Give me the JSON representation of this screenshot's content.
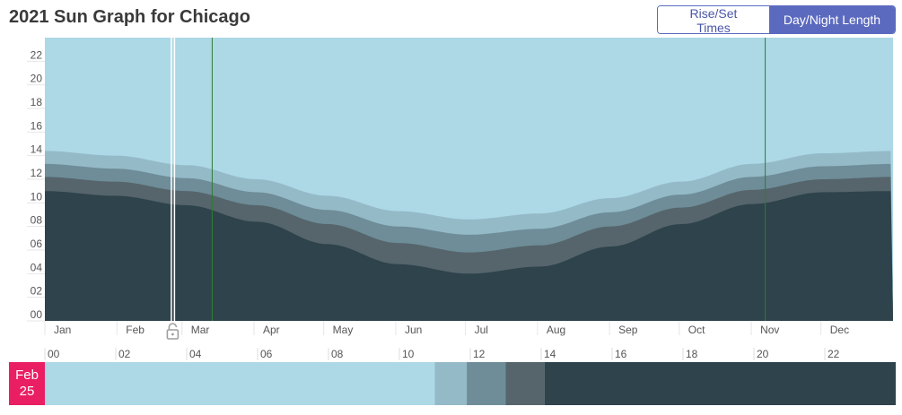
{
  "title": "2021 Sun Graph for Chicago",
  "toggle": {
    "rise_set_label": "Rise/Set Times",
    "day_night_label": "Day/Night Length",
    "active": "day_night"
  },
  "colors": {
    "day": "#add8e6",
    "civil": "#94bac8",
    "nautical": "#6e8d98",
    "astronomical": "#56656c",
    "night": "#2e434c",
    "marker": "#2e7d32",
    "badge": "#e91e63",
    "accent": "#5b6abf"
  },
  "selected_date": {
    "month": "Feb",
    "day": "25"
  },
  "chart_data": {
    "type": "area",
    "x_tick_labels": [
      "Jan",
      "Feb",
      "Mar",
      "Apr",
      "May",
      "Jun",
      "Jul",
      "Aug",
      "Sep",
      "Oct",
      "Nov",
      "Dec"
    ],
    "y_tick_labels": [
      "00",
      "02",
      "04",
      "06",
      "08",
      "10",
      "12",
      "14",
      "16",
      "18",
      "20",
      "22"
    ],
    "ylim": [
      0,
      24
    ],
    "unit": "hours",
    "series": [
      {
        "key": "night",
        "values": [
          11.0,
          10.6,
          9.8,
          8.4,
          6.5,
          4.8,
          4.0,
          4.6,
          6.3,
          8.2,
          9.9,
          10.9,
          11.0
        ]
      },
      {
        "key": "astronomical",
        "values": [
          12.2,
          11.8,
          11.0,
          9.8,
          8.2,
          6.6,
          5.8,
          6.4,
          8.0,
          9.6,
          11.1,
          12.0,
          12.2
        ]
      },
      {
        "key": "nautical",
        "values": [
          13.3,
          12.9,
          12.1,
          10.9,
          9.4,
          8.0,
          7.3,
          7.8,
          9.2,
          10.7,
          12.2,
          13.1,
          13.3
        ]
      },
      {
        "key": "civil",
        "values": [
          14.4,
          14.0,
          13.2,
          12.0,
          10.6,
          9.3,
          8.6,
          9.1,
          10.4,
          11.8,
          13.3,
          14.2,
          14.4
        ]
      }
    ],
    "markers": [
      "Mar 14",
      "Nov 7"
    ],
    "selected": "Feb 25",
    "timeline_hours": [
      "00",
      "02",
      "04",
      "06",
      "08",
      "10",
      "12",
      "14",
      "16",
      "18",
      "20",
      "22"
    ],
    "timeline_segments": [
      {
        "key": "day",
        "hours": 11.0
      },
      {
        "key": "civil",
        "hours": 0.9
      },
      {
        "key": "nautical",
        "hours": 1.1
      },
      {
        "key": "astronomical",
        "hours": 1.1
      },
      {
        "key": "night",
        "hours": 9.9
      }
    ]
  }
}
